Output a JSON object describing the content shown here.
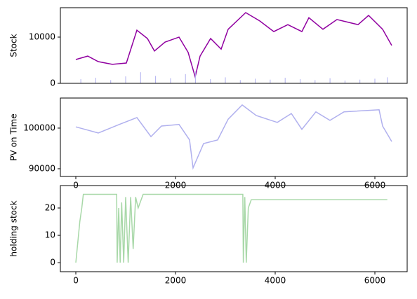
{
  "chart_data": [
    {
      "type": "line",
      "ylabel": "Stock",
      "xlim": [
        -310,
        6648
      ],
      "ylim": [
        0,
        16360
      ],
      "yticks": [
        0,
        10000
      ],
      "series": [
        {
          "color": "#9000a0",
          "x": [
            0,
            239,
            451,
            732,
            1014,
            1225,
            1437,
            1577,
            1789,
            2070,
            2254,
            2394,
            2493,
            2704,
            2915,
            3056,
            3408,
            3690,
            3972,
            4254,
            4535,
            4676,
            4958,
            5239,
            5662,
            5873,
            6155,
            6338
          ],
          "values": [
            5150,
            5900,
            4700,
            4100,
            4400,
            11500,
            9700,
            7000,
            8900,
            10000,
            6700,
            1400,
            5900,
            9700,
            7400,
            11700,
            15300,
            13500,
            11200,
            12700,
            11200,
            14200,
            11700,
            13800,
            12700,
            14700,
            11700,
            8200
          ]
        },
        {
          "color": "#b0b0f0",
          "style": "bar",
          "x": [
            100,
            400,
            700,
            1000,
            1300,
            1600,
            1900,
            2200,
            2400,
            2700,
            3000,
            3300,
            3600,
            3900,
            4200,
            4500,
            4800,
            5100,
            5400,
            5700,
            6000,
            6250
          ],
          "values": [
            900,
            1200,
            700,
            1500,
            2400,
            1600,
            1100,
            2000,
            2600,
            900,
            1300,
            700,
            1000,
            800,
            1200,
            900,
            700,
            1100,
            600,
            800,
            1000,
            1300
          ]
        }
      ]
    },
    {
      "type": "line",
      "ylabel": "PV on Time",
      "xlim": [
        -310,
        6648
      ],
      "ylim": [
        88100,
        107400
      ],
      "yticks": [
        90000,
        100000
      ],
      "xticks": [
        0,
        2000,
        4000,
        6000
      ],
      "series": [
        {
          "color": "#b0b0ee",
          "x": [
            0,
            451,
            873,
            1225,
            1507,
            1718,
            2070,
            2282,
            2352,
            2563,
            2845,
            3056,
            3338,
            3620,
            4042,
            4324,
            4535,
            4817,
            5099,
            5380,
            6085,
            6155,
            6338
          ],
          "values": [
            100300,
            98800,
            100900,
            102600,
            97900,
            100500,
            100900,
            97100,
            90200,
            96200,
            97100,
            102200,
            105700,
            103100,
            101400,
            103600,
            99700,
            104000,
            101900,
            104000,
            104500,
            100500,
            96700
          ]
        }
      ]
    },
    {
      "type": "line",
      "ylabel": "holding stock",
      "xlim": [
        -310,
        6648
      ],
      "ylim": [
        -3.3,
        28.2
      ],
      "yticks": [
        0,
        10,
        20
      ],
      "xticks": [
        0,
        2000,
        4000,
        6000
      ],
      "series": [
        {
          "color": "#a8d8a8",
          "x": [
            0,
            80,
            120,
            150,
            820,
            830,
            860,
            890,
            920,
            960,
            1000,
            1050,
            1100,
            1150,
            1200,
            1250,
            1350,
            3350,
            3360,
            3390,
            3420,
            3460,
            3520,
            6250
          ],
          "values": [
            0,
            15,
            20,
            25,
            25,
            0,
            20,
            0,
            22,
            0,
            24,
            0,
            24,
            5,
            24,
            20,
            25,
            25,
            0,
            24,
            0,
            20,
            23,
            23
          ]
        }
      ]
    }
  ]
}
